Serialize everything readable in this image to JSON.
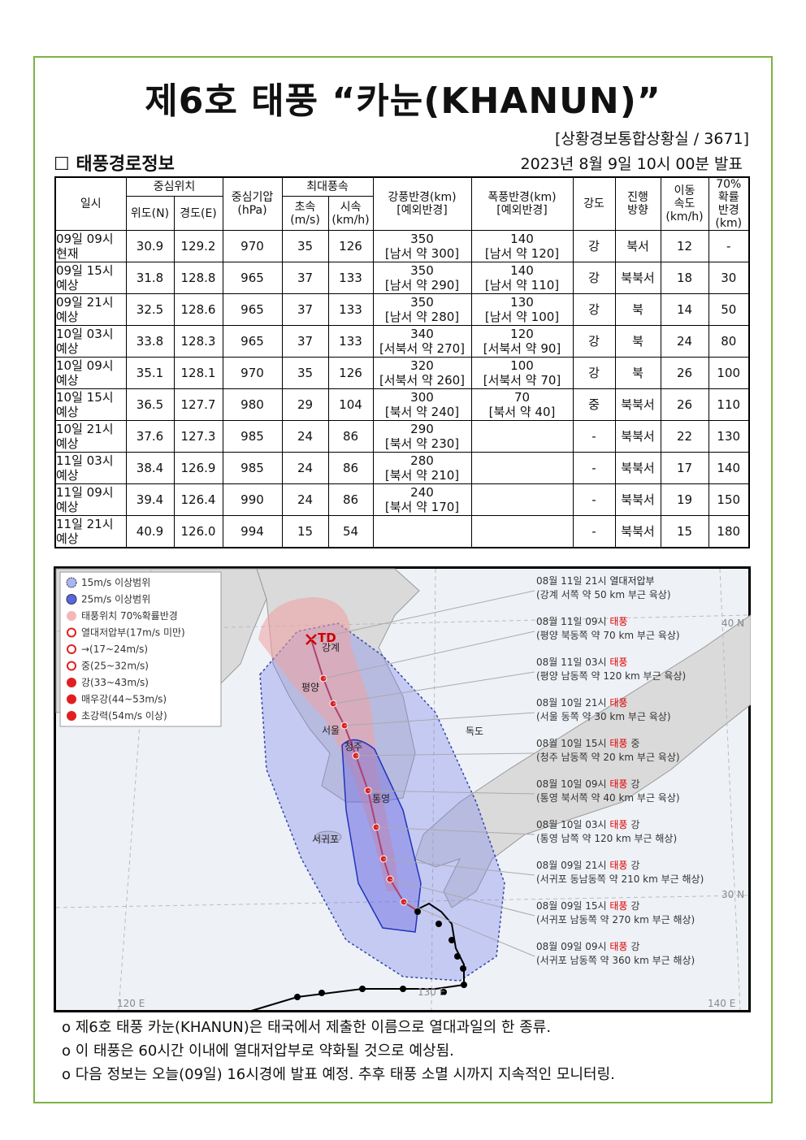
{
  "header": {
    "title": "제6호 태풍 “카눈(KHANUN)”",
    "office": "[상황경보통합상황실 / 3671]",
    "section": "☐ 태풍경로정보",
    "issued": "2023년 8월 9일 10시 00분 발표"
  },
  "table": {
    "header": {
      "time": [
        "일시"
      ],
      "center": [
        "중심위치"
      ],
      "lat": [
        "위도(N)"
      ],
      "lon": [
        "경도(E)"
      ],
      "pressure": [
        "중심기압",
        "(hPa)"
      ],
      "wind": [
        "최대풍속"
      ],
      "ms": [
        "초속",
        "(m/s)"
      ],
      "kmh": [
        "시속",
        "(km/h)"
      ],
      "strong": [
        "강풍반경(km)",
        "[예외반경]"
      ],
      "storm": [
        "폭풍반경(km)",
        "[예외반경]"
      ],
      "intensity": [
        "강도"
      ],
      "direction": [
        "진행",
        "방향"
      ],
      "speed": [
        "이동",
        "속도",
        "(km/h)"
      ],
      "prob": [
        "70%",
        "확률",
        "반경",
        "(km)"
      ]
    },
    "rows": [
      [
        [
          "09일 09시",
          "현재"
        ],
        "30.9",
        "129.2",
        "970",
        "35",
        "126",
        [
          "350",
          "[남서 약 300]"
        ],
        [
          "140",
          "[남서 약 120]"
        ],
        "강",
        "북서",
        "12",
        "-"
      ],
      [
        [
          "09일 15시",
          "예상"
        ],
        "31.8",
        "128.8",
        "965",
        "37",
        "133",
        [
          "350",
          "[남서 약 290]"
        ],
        [
          "140",
          "[남서 약 110]"
        ],
        "강",
        "북북서",
        "18",
        "30"
      ],
      [
        [
          "09일 21시",
          "예상"
        ],
        "32.5",
        "128.6",
        "965",
        "37",
        "133",
        [
          "350",
          "[남서 약 280]"
        ],
        [
          "130",
          "[남서 약 100]"
        ],
        "강",
        "북",
        "14",
        "50"
      ],
      [
        [
          "10일 03시",
          "예상"
        ],
        "33.8",
        "128.3",
        "965",
        "37",
        "133",
        [
          "340",
          "[서북서 약 270]"
        ],
        [
          "120",
          "[서북서 약 90]"
        ],
        "강",
        "북",
        "24",
        "80"
      ],
      [
        [
          "10일 09시",
          "예상"
        ],
        "35.1",
        "128.1",
        "970",
        "35",
        "126",
        [
          "320",
          "[서북서 약 260]"
        ],
        [
          "100",
          "[서북서 약 70]"
        ],
        "강",
        "북",
        "26",
        "100"
      ],
      [
        [
          "10일 15시",
          "예상"
        ],
        "36.5",
        "127.7",
        "980",
        "29",
        "104",
        [
          "300",
          "[북서 약 240]"
        ],
        [
          "70",
          "[북서 약 40]"
        ],
        "중",
        "북북서",
        "26",
        "110"
      ],
      [
        [
          "10일 21시",
          "예상"
        ],
        "37.6",
        "127.3",
        "985",
        "24",
        "86",
        [
          "290",
          "[북서 약 230]"
        ],
        null,
        "-",
        "북북서",
        "22",
        "130"
      ],
      [
        [
          "11일 03시",
          "예상"
        ],
        "38.4",
        "126.9",
        "985",
        "24",
        "86",
        [
          "280",
          "[북서 약 210]"
        ],
        null,
        "-",
        "북북서",
        "17",
        "140"
      ],
      [
        [
          "11일 09시",
          "예상"
        ],
        "39.4",
        "126.4",
        "990",
        "24",
        "86",
        [
          "240",
          "[북서 약 170]"
        ],
        null,
        "-",
        "북북서",
        "19",
        "150"
      ],
      [
        [
          "11일 21시",
          "예상"
        ],
        "40.9",
        "126.0",
        "994",
        "15",
        "54",
        null,
        null,
        "-",
        "북북서",
        "15",
        "180"
      ]
    ]
  },
  "map": {
    "legend": [
      "15m/s 이상범위",
      "25m/s 이상범위",
      "태풍위치 70%확률반경",
      "열대저압부(17m/s 미만)",
      "→(17~24m/s)",
      "중(25~32m/s)",
      "강(33~43m/s)",
      "매우강(44~53m/s)",
      "초강력(54m/s 이상)"
    ],
    "places": [
      "TD",
      "강계",
      "평양",
      "서울",
      "청주",
      "통영",
      "서귀포",
      "독도"
    ],
    "grid": [
      "40 N",
      "30 N",
      "120 E",
      "130 E",
      "140 E"
    ],
    "annotations": [
      {
        "time": "08월 11일 21시",
        "type": "열대저압부",
        "type_color": "#222222",
        "desc": "(강계 서쪽 약 50 km 부근 육상)"
      },
      {
        "time": "08월 11일 09시",
        "type": "태풍",
        "type_color": "#e00000",
        "desc": "(평양 북동쪽 약 70 km 부근 육상)"
      },
      {
        "time": "08월 11일 03시",
        "type": "태풍",
        "type_color": "#e00000",
        "desc": "(평양 남동쪽 약 120 km 부근 육상)"
      },
      {
        "time": "08월 10일 21시",
        "type": "태풍",
        "type_color": "#e00000",
        "desc": "(서울 동쪽 약 30 km 부근 육상)"
      },
      {
        "time": "08월 10일 15시",
        "type": "태풍",
        "type_color": "#e00000",
        "strength": "중",
        "desc": "(청주 남동쪽 약 20 km 부근 육상)"
      },
      {
        "time": "08월 10일 09시",
        "type": "태풍",
        "type_color": "#e00000",
        "strength": "강",
        "desc": "(통영 북서쪽 약 40 km 부근 육상)"
      },
      {
        "time": "08월 10일 03시",
        "type": "태풍",
        "type_color": "#e00000",
        "strength": "강",
        "desc": "(통영 남쪽 약 120 km 부근 해상)"
      },
      {
        "time": "08월 09일 21시",
        "type": "태풍",
        "type_color": "#e00000",
        "strength": "강",
        "desc": "(서귀포 동남동쪽 약 210 km 부근 해상)"
      },
      {
        "time": "08월 09일 15시",
        "type": "태풍",
        "type_color": "#e00000",
        "strength": "강",
        "desc": "(서귀포 남동쪽 약 270 km 부근 해상)"
      },
      {
        "time": "08월 09일 09시",
        "type": "태풍",
        "type_color": "#e00000",
        "strength": "강",
        "desc": "(서귀포 남동쪽 약 360 km 부근 해상)"
      }
    ]
  },
  "notes": [
    "o 제6호 태풍 카눈(KHANUN)은 태국에서 제출한 이름으로 열대과일의 한 종류.",
    "o 이 태풍은 60시간 이내에 열대저압부로 약화될 것으로 예상됨.",
    "o 다음 정보는 오늘(09일) 16시경에 발표 예정. 추후 태풍 소멸 시까지 지속적인 모니터링."
  ]
}
